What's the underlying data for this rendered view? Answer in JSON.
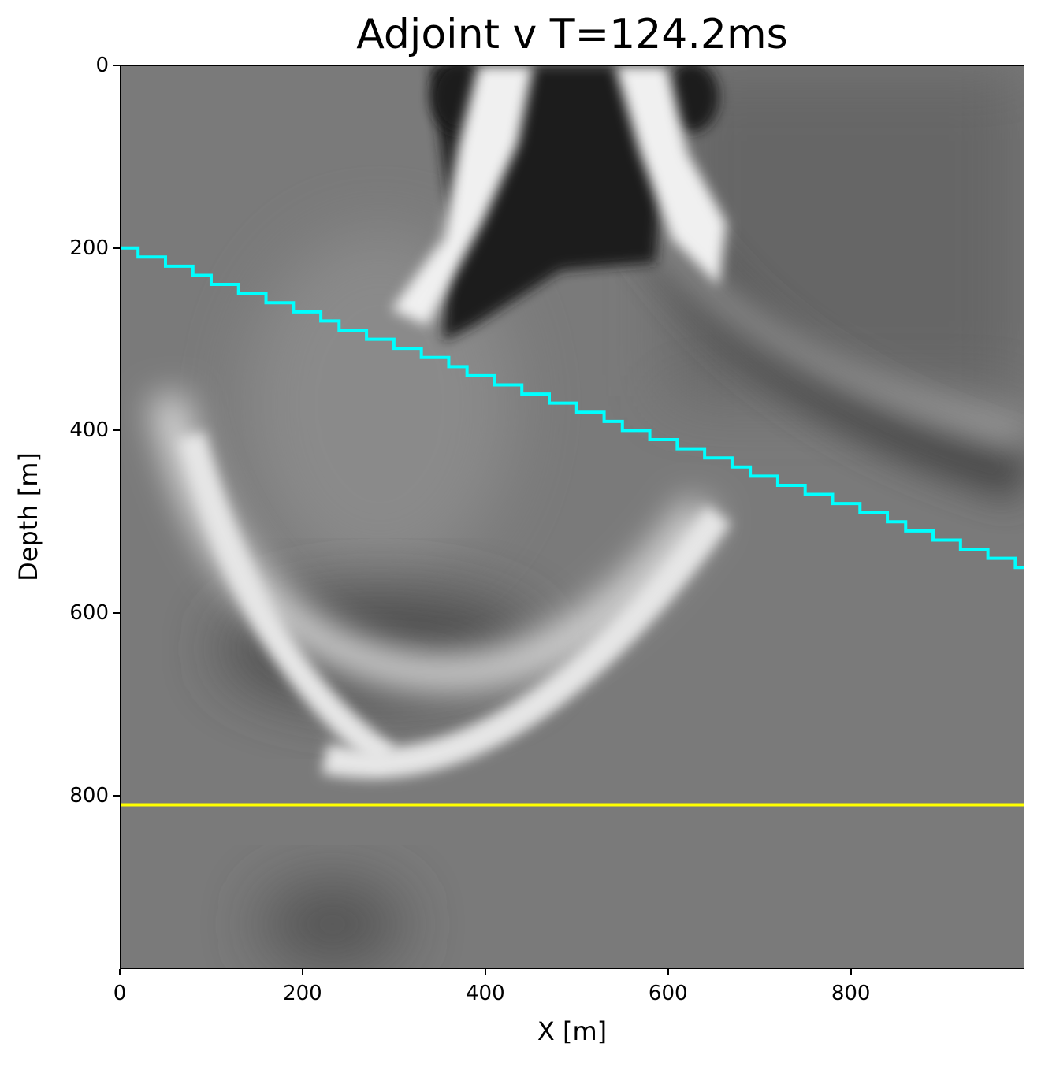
{
  "chart_data": {
    "type": "heatmap",
    "title": "Adjoint v T=124.2ms",
    "xlabel": "X [m]",
    "ylabel": "Depth [m]",
    "xlim": [
      0,
      990
    ],
    "ylim": [
      990,
      0
    ],
    "xticks": [
      0,
      200,
      400,
      600,
      800
    ],
    "yticks": [
      0,
      200,
      400,
      600,
      800
    ],
    "colormap": "gray",
    "overlays": [
      {
        "name": "dipping-interface",
        "type": "staircase-line",
        "color": "#00ffff",
        "x": [
          0,
          985
        ],
        "depth": [
          200,
          550
        ],
        "step": 10
      },
      {
        "name": "receiver-line",
        "type": "horizontal-line",
        "color": "#ffff00",
        "depth": 810
      }
    ]
  }
}
